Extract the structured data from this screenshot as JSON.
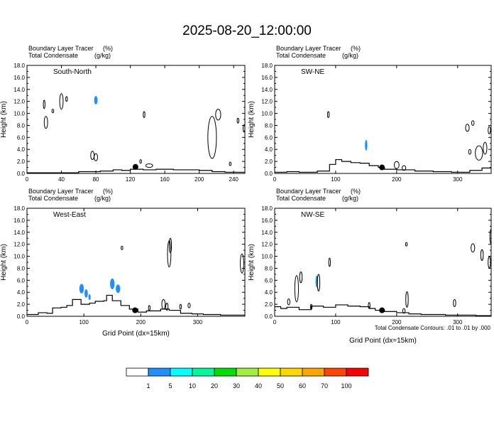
{
  "title": "2025-08-20_12:00:00",
  "panel_header": {
    "line1": "Boundary Layer Tracer",
    "line1_unit": "(%)",
    "line2": "Total Condensate",
    "line2_unit": "(g/kg)"
  },
  "ylabel": "Height (km)",
  "xlabel": "Grid Point (dx=15km)",
  "contour_note": "Total Condensate Contours: .01 to .01 by .000",
  "colorbar": {
    "labels": [
      "1",
      "5",
      "10",
      "20",
      "30",
      "40",
      "50",
      "60",
      "70",
      "100"
    ],
    "colors": [
      "#ffffff",
      "#1e90ff",
      "#00ffff",
      "#00fa9a",
      "#00e000",
      "#a0f040",
      "#ffff00",
      "#ffd700",
      "#ffa500",
      "#ff4500",
      "#ff0000"
    ]
  },
  "chart_data": [
    {
      "type": "contour",
      "panel_label": "South-North",
      "xlim": [
        0,
        253
      ],
      "ylim": [
        0,
        18
      ],
      "xticks": [
        0,
        40,
        80,
        120,
        160,
        200,
        240
      ],
      "yticks": [
        0.0,
        2.0,
        4.0,
        6.0,
        8.0,
        10.0,
        12.0,
        14.0,
        16.0,
        18.0
      ],
      "show_xlabel": false,
      "marker": [
        126,
        1.1
      ],
      "terrain": [
        [
          0,
          0.1
        ],
        [
          40,
          0.1
        ],
        [
          60,
          0.3
        ],
        [
          85,
          0.4
        ],
        [
          100,
          0.6
        ],
        [
          110,
          0.5
        ],
        [
          120,
          0.7
        ],
        [
          135,
          0.6
        ],
        [
          150,
          0.7
        ],
        [
          170,
          0.6
        ],
        [
          180,
          0.6
        ],
        [
          200,
          0.5
        ],
        [
          215,
          0.3
        ],
        [
          230,
          0.2
        ],
        [
          253,
          0.1
        ]
      ],
      "tracer_blobs": [
        [
          80,
          12.2,
          2,
          0.7
        ]
      ],
      "condensate_contours": [
        [
          20,
          11.5,
          1,
          0.7
        ],
        [
          22,
          8.5,
          2,
          1
        ],
        [
          40,
          12.0,
          2,
          1.3
        ],
        [
          46,
          12.4,
          1,
          0.4
        ],
        [
          30,
          10.4,
          1,
          0.3
        ],
        [
          76,
          3.0,
          2,
          0.7
        ],
        [
          80,
          2.7,
          2,
          0.6
        ],
        [
          136,
          9.8,
          1,
          0.5
        ],
        [
          132,
          2.0,
          1,
          0.3
        ],
        [
          142,
          1.3,
          4,
          0.3
        ],
        [
          215,
          6.0,
          5,
          3.5
        ],
        [
          222,
          9.8,
          3,
          0.9
        ],
        [
          245,
          8.8,
          1,
          0.4
        ],
        [
          252,
          7.5,
          1,
          0.6
        ],
        [
          236,
          1.6,
          1,
          0.3
        ]
      ]
    },
    {
      "type": "contour",
      "panel_label": "SW-NE",
      "xlim": [
        0,
        355
      ],
      "ylim": [
        0,
        18
      ],
      "xticks": [
        0,
        100,
        200,
        300
      ],
      "yticks": [
        0.0,
        2.0,
        4.0,
        6.0,
        8.0,
        10.0,
        12.0,
        14.0,
        16.0,
        18.0
      ],
      "show_xlabel": false,
      "marker": [
        176,
        1.0
      ],
      "terrain": [
        [
          0,
          0.2
        ],
        [
          20,
          0.3
        ],
        [
          40,
          0.2
        ],
        [
          70,
          0.4
        ],
        [
          90,
          1.5
        ],
        [
          100,
          2.3
        ],
        [
          110,
          2.0
        ],
        [
          125,
          1.8
        ],
        [
          140,
          1.7
        ],
        [
          155,
          1.3
        ],
        [
          170,
          1.0
        ],
        [
          180,
          0.7
        ],
        [
          200,
          0.6
        ],
        [
          230,
          0.4
        ],
        [
          260,
          0.3
        ],
        [
          290,
          0.2
        ],
        [
          320,
          0.5
        ],
        [
          340,
          0.9
        ],
        [
          355,
          0.7
        ]
      ],
      "tracer_blobs": [
        [
          150,
          4.7,
          2,
          0.9
        ]
      ],
      "condensate_contours": [
        [
          88,
          9.8,
          1,
          0.5
        ],
        [
          200,
          1.4,
          4,
          0.6
        ],
        [
          212,
          0.9,
          3,
          0.4
        ],
        [
          320,
          3.6,
          2,
          0.4
        ],
        [
          335,
          3.4,
          6,
          1.2
        ],
        [
          345,
          4.2,
          3,
          1.0
        ],
        [
          316,
          7.6,
          3,
          0.6
        ],
        [
          325,
          8.4,
          2,
          0.4
        ],
        [
          352,
          7.2,
          2,
          0.6
        ]
      ]
    },
    {
      "type": "contour",
      "panel_label": "West-East",
      "xlim": [
        0,
        383
      ],
      "ylim": [
        0,
        18
      ],
      "xticks": [
        0,
        100,
        200,
        300
      ],
      "yticks": [
        0.0,
        2.0,
        4.0,
        6.0,
        8.0,
        10.0,
        12.0,
        14.0,
        16.0,
        18.0
      ],
      "show_xlabel": true,
      "marker": [
        190,
        1.0
      ],
      "terrain": [
        [
          0,
          0.3
        ],
        [
          20,
          0.6
        ],
        [
          35,
          0.5
        ],
        [
          45,
          1.4
        ],
        [
          60,
          1.5
        ],
        [
          70,
          1.8
        ],
        [
          80,
          2.8
        ],
        [
          95,
          2.0
        ],
        [
          110,
          2.2
        ],
        [
          120,
          2.5
        ],
        [
          135,
          2.6
        ],
        [
          140,
          3.5
        ],
        [
          150,
          2.6
        ],
        [
          165,
          1.8
        ],
        [
          180,
          1.2
        ],
        [
          195,
          0.7
        ],
        [
          210,
          0.9
        ],
        [
          235,
          1.2
        ],
        [
          250,
          1.0
        ],
        [
          270,
          0.5
        ],
        [
          290,
          0.4
        ],
        [
          310,
          0.3
        ],
        [
          340,
          0.2
        ],
        [
          383,
          0.1
        ]
      ],
      "tracer_blobs": [
        [
          96,
          4.6,
          4,
          0.8
        ],
        [
          104,
          3.8,
          3,
          0.7
        ],
        [
          110,
          3.2,
          2,
          0.5
        ],
        [
          150,
          5.4,
          4,
          0.9
        ],
        [
          160,
          4.6,
          4,
          0.7
        ]
      ],
      "condensate_contours": [
        [
          167,
          11.4,
          1,
          0.3
        ],
        [
          250,
          10.4,
          3,
          2.2
        ],
        [
          252,
          11.8,
          2,
          1.2
        ],
        [
          240,
          2.0,
          3,
          0.8
        ],
        [
          246,
          1.6,
          2,
          0.6
        ],
        [
          215,
          1.4,
          1,
          0.4
        ],
        [
          270,
          1.6,
          1,
          0.4
        ],
        [
          285,
          1.8,
          2,
          0.4
        ],
        [
          378,
          8.8,
          3,
          1.6
        ]
      ]
    },
    {
      "type": "contour",
      "panel_label": "NW-SE",
      "xlim": [
        0,
        355
      ],
      "ylim": [
        0,
        18
      ],
      "xticks": [
        0,
        100,
        200,
        300
      ],
      "yticks": [
        0.0,
        2.0,
        4.0,
        6.0,
        8.0,
        10.0,
        12.0,
        14.0,
        16.0,
        18.0
      ],
      "show_xlabel": true,
      "marker": [
        176,
        1.0
      ],
      "terrain": [
        [
          0,
          1.6
        ],
        [
          10,
          1.3
        ],
        [
          20,
          1.5
        ],
        [
          40,
          1.1
        ],
        [
          60,
          1.7
        ],
        [
          80,
          1.5
        ],
        [
          100,
          1.9
        ],
        [
          120,
          1.7
        ],
        [
          140,
          1.6
        ],
        [
          155,
          1.3
        ],
        [
          165,
          1.0
        ],
        [
          180,
          0.8
        ],
        [
          200,
          0.6
        ],
        [
          220,
          0.4
        ],
        [
          240,
          0.3
        ],
        [
          260,
          0.3
        ],
        [
          280,
          0.2
        ],
        [
          300,
          0.2
        ],
        [
          330,
          0.1
        ],
        [
          355,
          0.1
        ]
      ],
      "tracer_blobs": [
        [
          69,
          5.8,
          2,
          1.0
        ]
      ],
      "condensate_contours": [
        [
          36,
          4.6,
          3,
          2.2
        ],
        [
          43,
          6.5,
          2,
          0.9
        ],
        [
          23,
          2.4,
          2,
          0.5
        ],
        [
          90,
          9.0,
          1,
          0.7
        ],
        [
          72,
          5.6,
          2,
          1.4
        ],
        [
          60,
          1.6,
          1,
          0.4
        ],
        [
          155,
          1.8,
          1,
          0.5
        ],
        [
          217,
          2.8,
          2,
          1.3
        ],
        [
          212,
          0.9,
          2,
          0.4
        ],
        [
          216,
          12.0,
          1,
          0.3
        ],
        [
          295,
          2.2,
          2,
          0.6
        ],
        [
          325,
          11.4,
          3,
          0.7
        ],
        [
          340,
          10.2,
          2,
          0.9
        ],
        [
          352,
          9.0,
          2,
          0.9
        ],
        [
          355,
          13.3,
          2,
          1.2
        ]
      ]
    }
  ]
}
